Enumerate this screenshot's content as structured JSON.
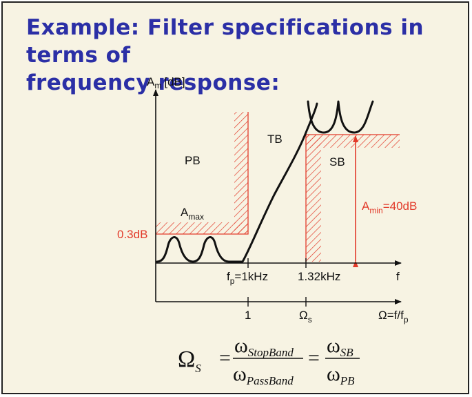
{
  "title": {
    "line1": "Example: Filter specifications in terms of",
    "line2": "frequency response:"
  },
  "axes": {
    "y_label_main": "A",
    "y_label_sub": "m",
    "y_label_unit": "[dB]",
    "x_label": "f",
    "x2_label_main": "Ω=f/f",
    "x2_label_sub": "p"
  },
  "regions": {
    "passband": "PB",
    "transition": "TB",
    "stopband": "SB"
  },
  "annotations": {
    "amax_main": "A",
    "amax_sub": "max",
    "passband_level": "0.3dB",
    "amin_main": "A",
    "amin_sub": "min",
    "amin_value": "=40dB",
    "fp_main": "f",
    "fp_sub": "p",
    "fp_value": "=1kHz",
    "fs_value": "1.32kHz",
    "omega_one": "1",
    "omega_s_main": "Ω",
    "omega_s_sub": "s"
  },
  "formula": {
    "lhs_main": "Ω",
    "lhs_sub": "S",
    "equals": "=",
    "num1_main": "ω",
    "num1_sub": "StopBand",
    "den1_main": "ω",
    "den1_sub": "PassBand",
    "num2_main": "ω",
    "num2_sub": "SB",
    "den2_main": "ω",
    "den2_sub": "PB"
  },
  "colors": {
    "title": "#2b2fa6",
    "spec": "#e23a2a",
    "background": "#f7f3e3"
  }
}
